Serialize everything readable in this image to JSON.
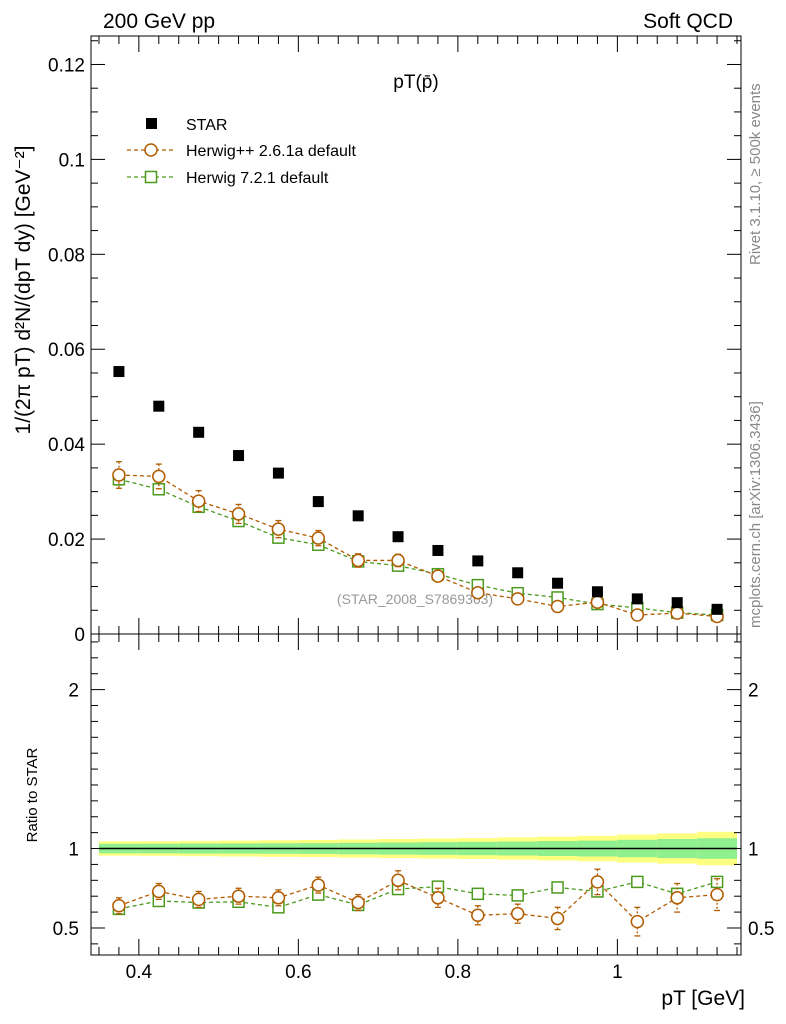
{
  "header": {
    "left": "200 GeV pp",
    "right": "Soft QCD",
    "side_top": "Rivet 3.1.10, ≥ 500k events",
    "side_bottom": "mcplots.cern.ch [arXiv:1306.3436]"
  },
  "chart_data": [
    {
      "type": "scatter",
      "title": "pT(p̄)",
      "ylabel": "1/(2π pT) d²N/(dpT dy) [GeV⁻²]",
      "xlabel": "pT [GeV]",
      "watermark": "(STAR_2008_S7869363)",
      "xlim": [
        0.34,
        1.155
      ],
      "ylim": [
        0,
        0.126
      ],
      "yticks": [
        {
          "v": 0,
          "label": "0"
        },
        {
          "v": 0.02,
          "label": "0.02"
        },
        {
          "v": 0.04,
          "label": "0.04"
        },
        {
          "v": 0.06,
          "label": "0.06"
        },
        {
          "v": 0.08,
          "label": "0.08"
        },
        {
          "v": 0.1,
          "label": "0.1"
        },
        {
          "v": 0.12,
          "label": "0.12"
        }
      ],
      "x": [
        0.375,
        0.425,
        0.475,
        0.525,
        0.575,
        0.625,
        0.675,
        0.725,
        0.775,
        0.825,
        0.875,
        0.925,
        0.975,
        1.025,
        1.075,
        1.125
      ],
      "legend": {
        "STAR": "STAR",
        "herwigpp": "Herwig++ 2.6.1a default",
        "herwig7": "Herwig 7.2.1 default"
      },
      "series": [
        {
          "key": "STAR",
          "marker": "filled-square",
          "color": "#000000",
          "values": [
            0.0553,
            0.048,
            0.0425,
            0.0376,
            0.0339,
            0.0279,
            0.0249,
            0.0205,
            0.0176,
            0.0154,
            0.0129,
            0.0107,
            0.0089,
            0.0074,
            0.0066,
            0.0052
          ]
        },
        {
          "key": "herwigpp",
          "marker": "open-circle",
          "color": "#b25b00",
          "values": [
            0.0335,
            0.0332,
            0.028,
            0.0253,
            0.0221,
            0.0202,
            0.0155,
            0.0155,
            0.0122,
            0.0087,
            0.0074,
            0.0058,
            0.0067,
            0.004,
            0.0044,
            0.0037
          ],
          "err": [
            0.0028,
            0.0026,
            0.0022,
            0.002,
            0.0018,
            0.0016,
            0.0014,
            0.0013,
            0.0011,
            0.0009,
            0.0008,
            0.0007,
            0.0007,
            0.0006,
            0.0005,
            0.0005
          ]
        },
        {
          "key": "herwig7",
          "marker": "open-square",
          "color": "#4c9a1e",
          "values": [
            0.0326,
            0.0305,
            0.0268,
            0.0238,
            0.0203,
            0.0188,
            0.0153,
            0.0144,
            0.0126,
            0.0103,
            0.0086,
            0.0077,
            0.0063,
            0.0055,
            0.0045,
            0.004
          ],
          "err": [
            0.0012,
            0.0011,
            0.001,
            0.0009,
            0.0008,
            0.0007,
            0.0006,
            0.0006,
            0.0005,
            0.0005,
            0.0004,
            0.0004,
            0.0003,
            0.0003,
            0.0003,
            0.0003
          ]
        }
      ]
    },
    {
      "type": "scatter",
      "title": "",
      "ylabel": "Ratio to STAR",
      "xlim": [
        0.34,
        1.155
      ],
      "ylim": [
        0.33,
        2.35
      ],
      "yticks": [
        {
          "v": 0.5,
          "label": "0.5"
        },
        {
          "v": 1,
          "label": "1"
        },
        {
          "v": 2,
          "label": "2"
        }
      ],
      "xticks": [
        {
          "v": 0.4,
          "label": "0.4"
        },
        {
          "v": 0.6,
          "label": "0.6"
        },
        {
          "v": 0.8,
          "label": "0.8"
        },
        {
          "v": 1.0,
          "label": "1"
        }
      ],
      "x": [
        0.375,
        0.425,
        0.475,
        0.525,
        0.575,
        0.625,
        0.675,
        0.725,
        0.775,
        0.825,
        0.875,
        0.925,
        0.975,
        1.025,
        1.075,
        1.125
      ],
      "band_x": [
        0.35,
        0.4,
        0.45,
        0.5,
        0.55,
        0.6,
        0.65,
        0.7,
        0.75,
        0.8,
        0.85,
        0.9,
        0.95,
        1.0,
        1.05,
        1.1,
        1.15
      ],
      "band_inner": [
        0.03,
        0.03,
        0.032,
        0.032,
        0.033,
        0.034,
        0.036,
        0.038,
        0.04,
        0.042,
        0.044,
        0.047,
        0.05,
        0.055,
        0.06,
        0.065
      ],
      "band_outer": [
        0.045,
        0.046,
        0.048,
        0.05,
        0.052,
        0.054,
        0.057,
        0.06,
        0.063,
        0.066,
        0.07,
        0.075,
        0.08,
        0.088,
        0.095,
        0.105
      ],
      "series": [
        {
          "key": "herwigpp",
          "marker": "open-circle",
          "color": "#b25b00",
          "values": [
            0.64,
            0.73,
            0.68,
            0.7,
            0.69,
            0.77,
            0.66,
            0.8,
            0.69,
            0.58,
            0.59,
            0.56,
            0.79,
            0.54,
            0.69,
            0.71
          ],
          "err": [
            0.05,
            0.05,
            0.05,
            0.05,
            0.05,
            0.05,
            0.05,
            0.06,
            0.06,
            0.06,
            0.06,
            0.07,
            0.08,
            0.09,
            0.09,
            0.1
          ]
        },
        {
          "key": "herwig7",
          "marker": "open-square",
          "color": "#4c9a1e",
          "values": [
            0.62,
            0.67,
            0.66,
            0.665,
            0.63,
            0.71,
            0.645,
            0.745,
            0.76,
            0.715,
            0.705,
            0.755,
            0.73,
            0.79,
            0.715,
            0.79
          ],
          "err": [
            0.02,
            0.02,
            0.02,
            0.02,
            0.02,
            0.02,
            0.02,
            0.02,
            0.02,
            0.02,
            0.02,
            0.02,
            0.025,
            0.025,
            0.025,
            0.03
          ]
        }
      ]
    }
  ]
}
